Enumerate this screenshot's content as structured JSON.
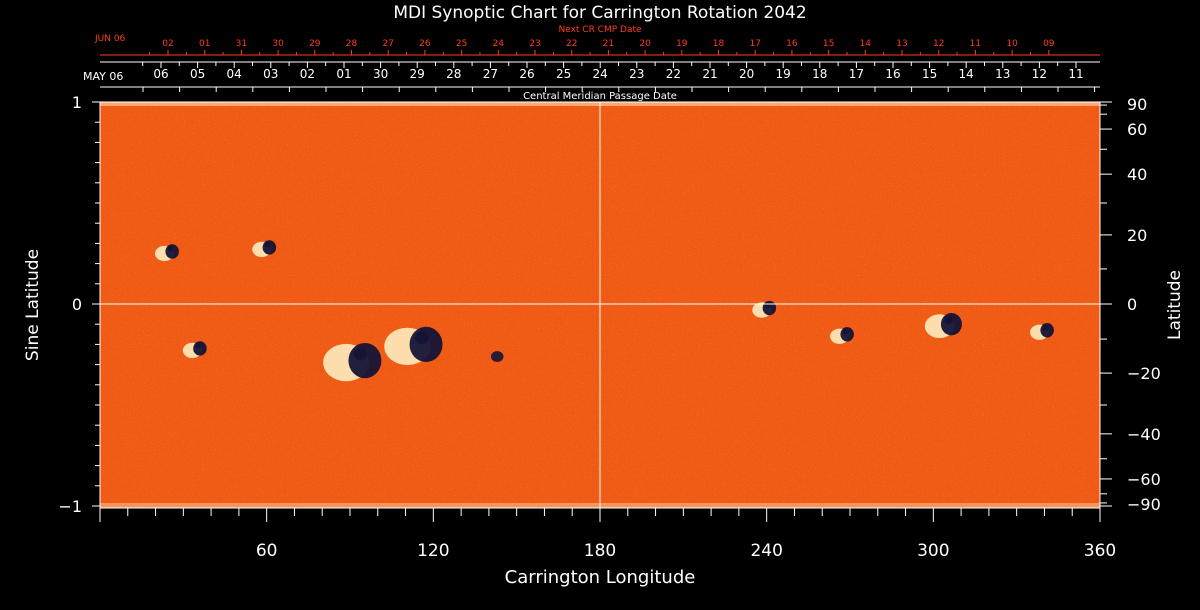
{
  "title": "MDI Synoptic Chart for Carrington Rotation 2042",
  "top_axis": {
    "next_cr_label": "Next CR CMP Date",
    "next_month_label": "JUN 06",
    "next_dates": [
      "02",
      "01",
      "31",
      "30",
      "29",
      "28",
      "27",
      "26",
      "25",
      "24",
      "23",
      "22",
      "21",
      "20",
      "19",
      "18",
      "17",
      "16",
      "15",
      "14",
      "13",
      "12",
      "11",
      "10",
      "09"
    ],
    "month_label": "MAY 06",
    "dates": [
      "06",
      "05",
      "04",
      "03",
      "02",
      "01",
      "30",
      "29",
      "28",
      "27",
      "26",
      "25",
      "24",
      "23",
      "22",
      "21",
      "20",
      "19",
      "18",
      "17",
      "16",
      "15",
      "14",
      "13",
      "12",
      "11"
    ],
    "cmp_label": "Central Meridian Passage Date"
  },
  "left_axis": {
    "label": "Sine Latitude",
    "ticks": [
      "1",
      "0",
      "−1"
    ],
    "tick_values": [
      1,
      0,
      -1
    ]
  },
  "right_axis": {
    "label": "Latitude",
    "ticks": [
      "90",
      "60",
      "40",
      "20",
      "0",
      "−20",
      "−40",
      "−60",
      "−90"
    ],
    "tick_values": [
      90,
      60,
      40,
      20,
      0,
      -20,
      -40,
      -60,
      -90
    ]
  },
  "bottom_axis": {
    "label": "Carrington Longitude",
    "ticks": [
      "60",
      "120",
      "180",
      "240",
      "300",
      "360"
    ],
    "tick_values": [
      60,
      120,
      180,
      240,
      300,
      360
    ],
    "range": [
      0,
      360
    ]
  },
  "colors": {
    "background": "#000000",
    "map_base": "#f05a14",
    "map_dark": "#c8320a",
    "map_light": "#ffa050",
    "positive_polarity": "#fff4c8",
    "negative_polarity": "#141436",
    "next_dates_color": "#ff3c1e"
  },
  "active_regions": [
    {
      "lon": 25,
      "lat_sin": 0.26,
      "polarity": "bipolar",
      "size": "small"
    },
    {
      "lon": 60,
      "lat_sin": 0.28,
      "polarity": "bipolar",
      "size": "small"
    },
    {
      "lon": 35,
      "lat_sin": -0.22,
      "polarity": "bipolar",
      "size": "small"
    },
    {
      "lon": 93,
      "lat_sin": -0.28,
      "polarity": "bipolar",
      "size": "large"
    },
    {
      "lon": 115,
      "lat_sin": -0.2,
      "polarity": "bipolar",
      "size": "large"
    },
    {
      "lon": 143,
      "lat_sin": -0.26,
      "polarity": "negative",
      "size": "small"
    },
    {
      "lon": 240,
      "lat_sin": -0.02,
      "polarity": "bipolar",
      "size": "small"
    },
    {
      "lon": 268,
      "lat_sin": -0.15,
      "polarity": "bipolar",
      "size": "small"
    },
    {
      "lon": 305,
      "lat_sin": -0.1,
      "polarity": "bipolar",
      "size": "medium"
    },
    {
      "lon": 340,
      "lat_sin": -0.13,
      "polarity": "bipolar",
      "size": "small"
    }
  ]
}
